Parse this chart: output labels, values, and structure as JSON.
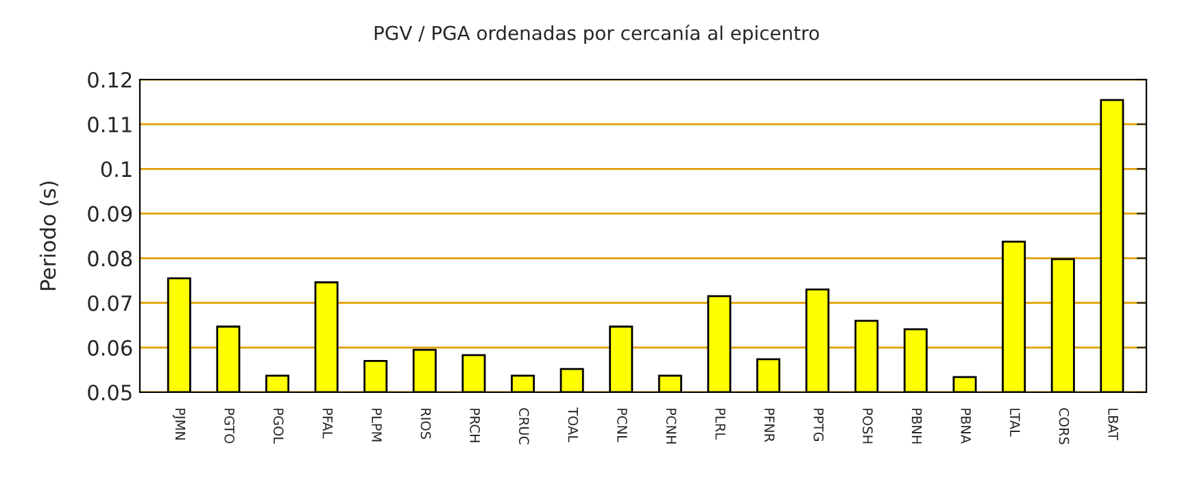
{
  "chart_data": {
    "type": "bar",
    "title": "PGV / PGA ordenadas por cercanía al epicentro",
    "ylabel": "Periodo (s)",
    "categories": [
      "PJMN",
      "PGTO",
      "PGOL",
      "PFAL",
      "PLPM",
      "RIOS",
      "PRCH",
      "CRUC",
      "TOAL",
      "PCNL",
      "PCNH",
      "PLRL",
      "PFNR",
      "PPTG",
      "POSH",
      "PBNH",
      "PBNA",
      "LTAL",
      "CORS",
      "LBAT"
    ],
    "values": [
      0.0755,
      0.0647,
      0.0537,
      0.0746,
      0.057,
      0.0595,
      0.0583,
      0.0537,
      0.0552,
      0.0647,
      0.0537,
      0.0715,
      0.0574,
      0.073,
      0.066,
      0.0641,
      0.0534,
      0.0837,
      0.0798,
      0.1154
    ],
    "color": "#ffff00",
    "ylim": [
      0.05,
      0.12
    ],
    "yticks": [
      0.05,
      0.06,
      0.07,
      0.08,
      0.09,
      0.1,
      0.11,
      0.12
    ],
    "grid": "y",
    "legend": false
  }
}
